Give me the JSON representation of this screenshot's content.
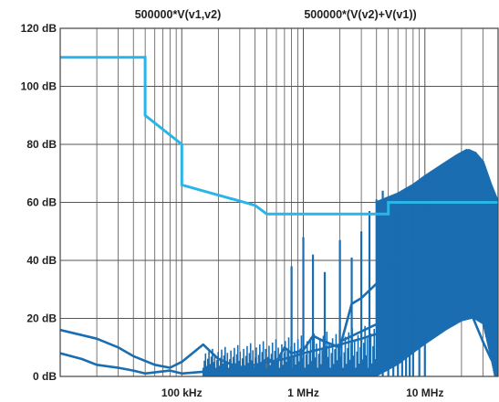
{
  "chart_data": {
    "type": "line",
    "title": "",
    "xlabel": "",
    "ylabel": "",
    "x_scale": "log",
    "x_unit": "Hz",
    "xlim": [
      10000,
      40000000
    ],
    "ylim": [
      0,
      120
    ],
    "grid": true,
    "legend_placement": "top",
    "x_tick_labels": [
      {
        "value": 100000,
        "label": "100 kHz"
      },
      {
        "value": 1000000,
        "label": "1 MHz"
      },
      {
        "value": 10000000,
        "label": "10 MHz"
      }
    ],
    "y_tick_labels": [
      {
        "value": 0,
        "label": "0 dB"
      },
      {
        "value": 20,
        "label": "20 dB"
      },
      {
        "value": 40,
        "label": "40 dB"
      },
      {
        "value": 60,
        "label": "60 dB"
      },
      {
        "value": 80,
        "label": "80 dB"
      },
      {
        "value": 100,
        "label": "100 dB"
      },
      {
        "value": 120,
        "label": "120 dB"
      }
    ],
    "legend": [
      "500000*V(v1,v2)",
      "500000*(V(v2)+V(v1))"
    ],
    "colors": {
      "limit_line": "#29B5E8",
      "spectrum": "#1A6DB0",
      "grid": "#555555",
      "text": "#222222"
    },
    "series": [
      {
        "name": "",
        "color": "#29B5E8",
        "x": [
          10000,
          50000,
          50000,
          100000,
          100000,
          400000,
          500000,
          5000000,
          5000000,
          40000000
        ],
        "y": [
          110,
          110,
          90,
          80,
          66,
          59,
          56,
          56,
          60,
          60
        ]
      },
      {
        "name": "500000*V(v1,v2)",
        "color": "#1A6DB0",
        "x": [
          10000,
          20000,
          30000,
          40000,
          60000,
          80000,
          100000,
          150000,
          200000,
          300000,
          400000,
          500000,
          600000,
          700000,
          800000,
          1000000,
          1200000,
          1500000,
          2000000,
          2500000,
          3000000,
          4000000,
          5000000,
          6000000,
          8000000,
          10000000,
          13000000,
          17000000,
          20000000,
          23000000,
          26000000,
          30000000,
          35000000,
          40000000
        ],
        "y": [
          16,
          13,
          10,
          7,
          4,
          3,
          5,
          11,
          6,
          3,
          3,
          6,
          5,
          10,
          8,
          9,
          14,
          12,
          10,
          25,
          27,
          32,
          36,
          40,
          45,
          55,
          66,
          74,
          77,
          78,
          77,
          72,
          63,
          58
        ]
      },
      {
        "name": "500000*(V(v2)+V(v1))",
        "color": "#1A6DB0",
        "x": [
          10000,
          15000,
          20000,
          30000,
          40000,
          50000,
          80000,
          100000,
          200000,
          400000,
          700000,
          1000000,
          2000000,
          3000000,
          5000000,
          8000000,
          10000000,
          15000000,
          20000000,
          25000000,
          30000000,
          35000000,
          40000000
        ],
        "y": [
          8,
          6,
          4,
          3,
          2,
          1,
          2,
          1,
          2,
          4,
          6,
          8,
          11,
          13,
          16,
          21,
          23,
          25,
          23,
          20,
          12,
          6,
          2
        ]
      }
    ],
    "annotations": {
      "spikes": {
        "x": [
          800000,
          1000000,
          1200000,
          1500000,
          2000000,
          2500000,
          3000000,
          3500000,
          4000000,
          4500000,
          5000000,
          5500000,
          6000000,
          6500000,
          7000000,
          7500000,
          8000000,
          9000000,
          10000000
        ],
        "y": [
          38,
          48,
          42,
          36,
          47,
          41,
          50,
          57,
          61,
          64,
          58,
          55,
          60,
          56,
          62,
          58,
          65,
          66,
          68
        ]
      },
      "envelope_upper": {
        "x": [
          4000000,
          6000000,
          8000000,
          10000000,
          14000000,
          18000000,
          22000000,
          26000000,
          30000000,
          35000000,
          40000000
        ],
        "y": [
          60,
          63,
          66,
          69,
          73,
          76,
          78,
          77,
          74,
          66,
          60
        ]
      },
      "envelope_lower": {
        "x": [
          2000000,
          4000000,
          6000000,
          8000000,
          10000000,
          15000000,
          20000000,
          25000000,
          30000000,
          35000000,
          40000000
        ],
        "y": [
          12,
          18,
          22,
          26,
          29,
          34,
          37,
          38,
          36,
          24,
          12
        ]
      }
    }
  }
}
